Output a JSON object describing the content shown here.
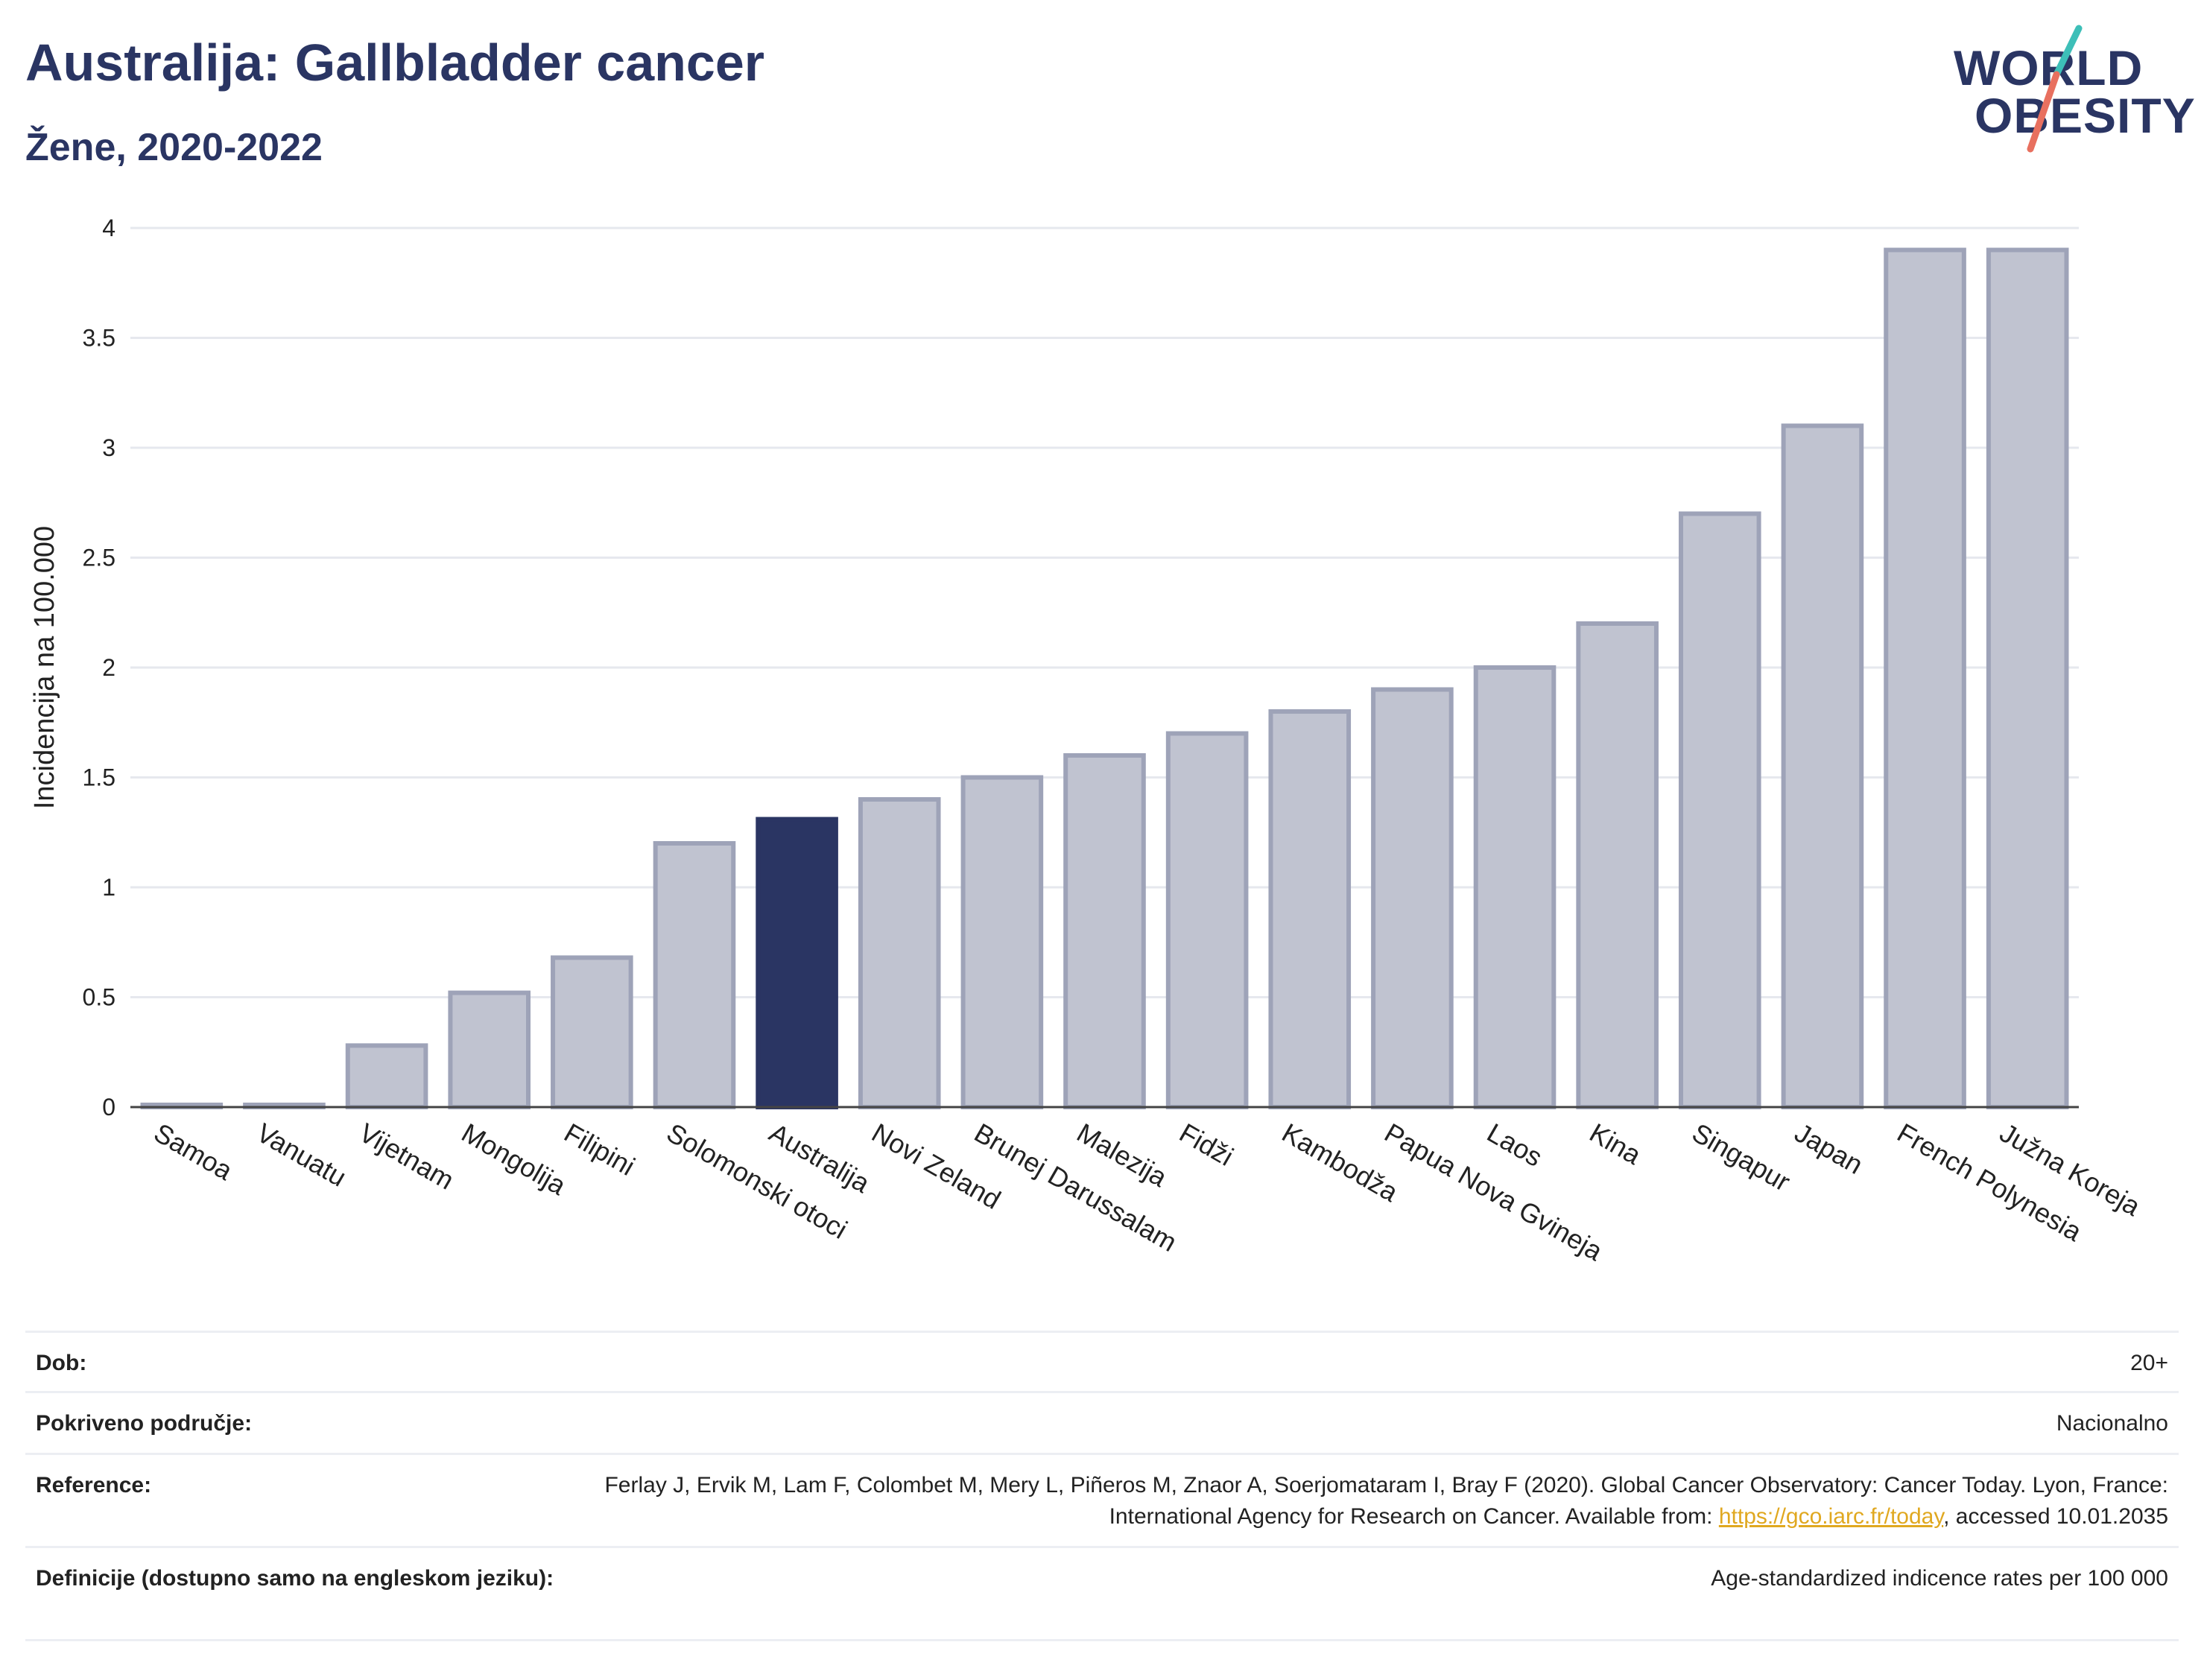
{
  "header": {
    "title": "Australija: Gallbladder cancer",
    "subtitle": "Žene, 2020-2022"
  },
  "logo": {
    "line1": "WORLD",
    "line2": "OBESITY",
    "colors": {
      "navy": "#2a3563",
      "teal": "#3dbfb8",
      "coral": "#e8705f"
    }
  },
  "chart_data": {
    "type": "bar",
    "ylabel": "Incidencija na 100.000",
    "xlabel": "",
    "ylim": [
      0,
      4
    ],
    "yticks": [
      "0",
      "0.5",
      "1",
      "1.5",
      "2",
      "2.5",
      "3",
      "3.5",
      "4"
    ],
    "grid": true,
    "highlight": "Australija",
    "colors": {
      "bar": "#c0c3d0",
      "bar_stroke": "#9ea3b8",
      "highlight": "#2a3563",
      "grid": "#e6e8ee"
    },
    "categories": [
      "Samoa",
      "Vanuatu",
      "Vijetnam",
      "Mongolija",
      "Filipini",
      "Solomonski otoci",
      "Australija",
      "Novi Zeland",
      "Brunej Darussalam",
      "Malezija",
      "Fidži",
      "Kambodža",
      "Papua Nova Gvineja",
      "Laos",
      "Kina",
      "Singapur",
      "Japan",
      "French Polynesia",
      "Južna Koreja"
    ],
    "values": [
      0.01,
      0.01,
      0.28,
      0.52,
      0.68,
      1.2,
      1.31,
      1.4,
      1.5,
      1.6,
      1.7,
      1.8,
      1.9,
      2.0,
      2.2,
      2.7,
      3.1,
      3.9,
      3.9
    ]
  },
  "info": {
    "age_label": "Dob:",
    "age_value": "20+",
    "coverage_label": "Pokriveno područje:",
    "coverage_value": "Nacionalno",
    "reference_label": "Reference:",
    "reference_text": "Ferlay J, Ervik M, Lam F, Colombet M, Mery L, Piñeros M, Znaor A, Soerjomataram I, Bray F (2020). Global Cancer Observatory: Cancer Today. Lyon, France: International Agency for Research on Cancer. Available from:",
    "reference_link": "https://gco.iarc.fr/today",
    "reference_suffix": ", accessed 10.01.2035",
    "definitions_label": "Definicije (dostupno samo na engleskom jeziku):",
    "definitions_value": "Age-standardized indicence rates per 100 000"
  }
}
